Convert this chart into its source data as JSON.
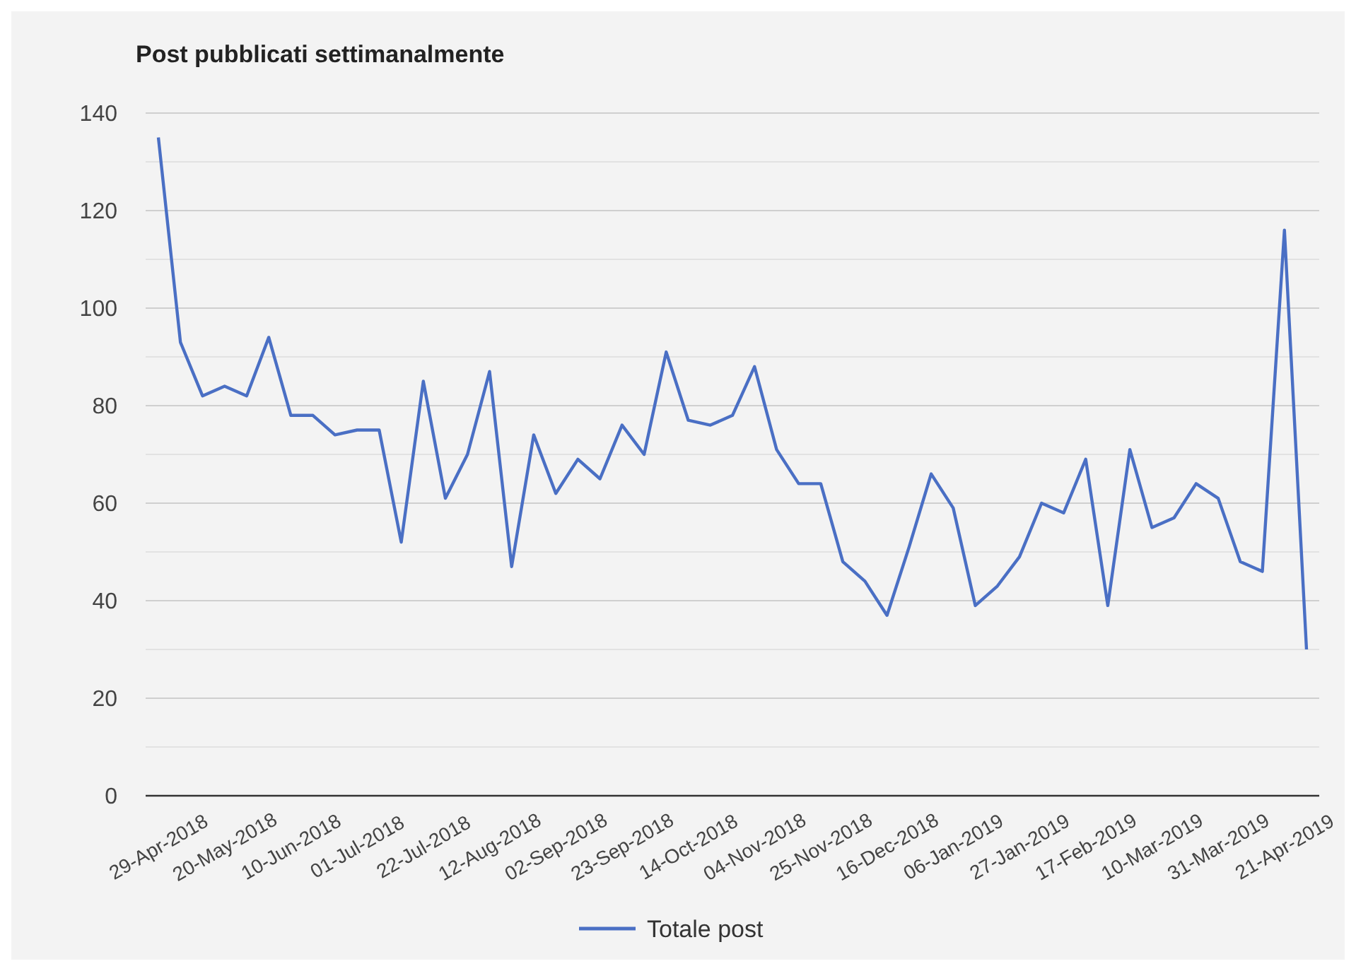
{
  "chart_data": {
    "type": "line",
    "title": "Post pubblicati settimanalmente",
    "categories": [
      "29-Apr-2018",
      null,
      null,
      "20-May-2018",
      null,
      null,
      "10-Jun-2018",
      null,
      null,
      "01-Jul-2018",
      null,
      null,
      "22-Jul-2018",
      null,
      null,
      "12-Aug-2018",
      null,
      null,
      "02-Sep-2018",
      null,
      null,
      "23-Sep-2018",
      null,
      null,
      "14-Oct-2018",
      null,
      null,
      "04-Nov-2018",
      null,
      null,
      "25-Nov-2018",
      null,
      null,
      "16-Dec-2018",
      null,
      null,
      "06-Jan-2019",
      null,
      null,
      "27-Jan-2019",
      null,
      null,
      "17-Feb-2019",
      null,
      null,
      "10-Mar-2019",
      null,
      null,
      "31-Mar-2019",
      null,
      null,
      "21-Apr-2019",
      null
    ],
    "series": [
      {
        "name": "Totale post",
        "color": "#4a6fc4",
        "values": [
          135,
          93,
          82,
          84,
          82,
          94,
          78,
          78,
          74,
          75,
          75,
          52,
          85,
          61,
          70,
          87,
          47,
          74,
          62,
          69,
          65,
          76,
          70,
          91,
          77,
          76,
          78,
          88,
          71,
          64,
          64,
          48,
          44,
          37,
          51,
          66,
          59,
          39,
          43,
          49,
          60,
          58,
          69,
          39,
          71,
          55,
          57,
          64,
          61,
          48,
          46,
          116,
          30
        ]
      }
    ],
    "ylim": [
      0,
      140
    ],
    "yticks": [
      0,
      {
        "value": 10,
        "label": null
      },
      20,
      {
        "value": 30,
        "label": null
      },
      40,
      {
        "value": 50,
        "label": null
      },
      60,
      {
        "value": 70,
        "label": null
      },
      80,
      {
        "value": 90,
        "label": null
      },
      100,
      {
        "value": 110,
        "label": null
      },
      120,
      {
        "value": 130,
        "label": null
      },
      140
    ],
    "grid": "y",
    "legend": "bottom",
    "marker": "none",
    "line_style": "solid"
  }
}
